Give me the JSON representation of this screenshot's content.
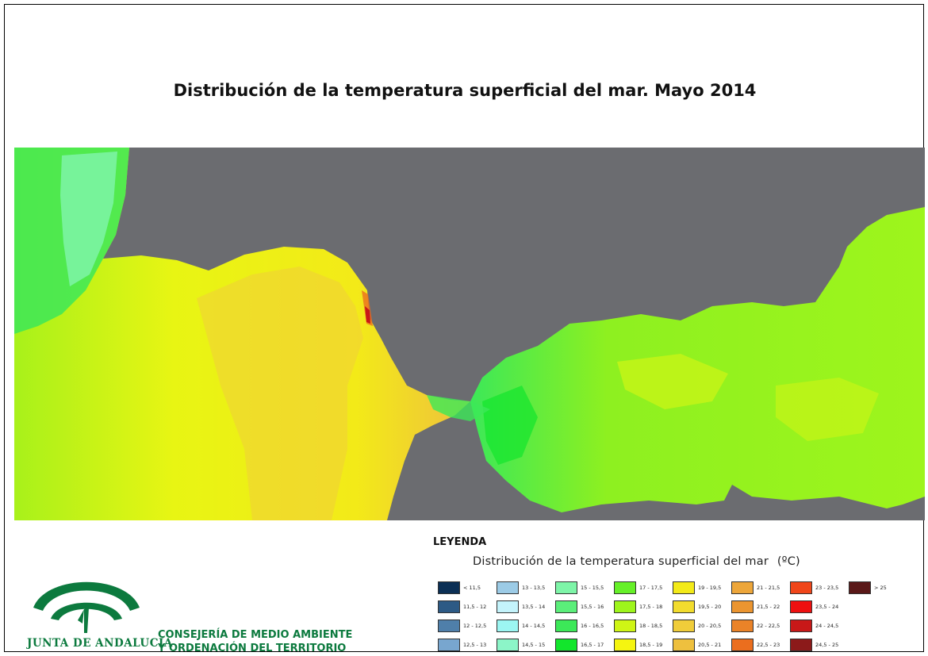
{
  "title": "Distribución de la temperatura superficial del mar. Mayo 2014",
  "legend": {
    "heading": "LEYENDA",
    "subtitle": "Distribución de la temperatura superficial del mar",
    "unit": "(ºC)",
    "items": [
      {
        "label": "< 11,5",
        "color": "#0b2f55"
      },
      {
        "label": "11,5 - 12",
        "color": "#2d5a85"
      },
      {
        "label": "12 - 12,5",
        "color": "#4f7faa"
      },
      {
        "label": "12,5 - 13",
        "color": "#78a6cf"
      },
      {
        "label": "13 - 13,5",
        "color": "#9ccbe6"
      },
      {
        "label": "13,5 - 14",
        "color": "#c4f3fb"
      },
      {
        "label": "14 - 14,5",
        "color": "#9cf6f2"
      },
      {
        "label": "14,5 - 15",
        "color": "#8cf5c8"
      },
      {
        "label": "15 - 15,5",
        "color": "#7ef5a8"
      },
      {
        "label": "15,5 - 16",
        "color": "#5bee7a"
      },
      {
        "label": "16 - 16,5",
        "color": "#3ce858"
      },
      {
        "label": "16,5 - 17",
        "color": "#12e62c"
      },
      {
        "label": "17 - 17,5",
        "color": "#66f028"
      },
      {
        "label": "17,5 - 18",
        "color": "#9ef51c"
      },
      {
        "label": "18 - 18,5",
        "color": "#cff515"
      },
      {
        "label": "18,5 - 19",
        "color": "#f5f510"
      },
      {
        "label": "19 - 19,5",
        "color": "#f3ea18"
      },
      {
        "label": "19,5 - 20",
        "color": "#f2dc2e"
      },
      {
        "label": "20 - 20,5",
        "color": "#f0cd3a"
      },
      {
        "label": "20,5 - 21",
        "color": "#eec03e"
      },
      {
        "label": "21 - 21,5",
        "color": "#eda63a"
      },
      {
        "label": "21,5 - 22",
        "color": "#eb9530"
      },
      {
        "label": "22 - 22,5",
        "color": "#ea8328"
      },
      {
        "label": "22,5 - 23",
        "color": "#eb6e1e"
      },
      {
        "label": "23 - 23,5",
        "color": "#f0461a"
      },
      {
        "label": "23,5 - 24",
        "color": "#ee1010"
      },
      {
        "label": "24 - 24,5",
        "color": "#c81818"
      },
      {
        "label": "24,5 - 25",
        "color": "#8c1a1a"
      },
      {
        "label": "> 25",
        "color": "#5a1818"
      }
    ]
  },
  "logo_text": "JUNTA DE ANDALUCIA",
  "department": {
    "line1": "CONSEJERÍA DE MEDIO AMBIENTE",
    "line2": "Y ORDENACIÓN DEL TERRITORIO"
  },
  "colors": {
    "land": "#6b6c70",
    "brand_green": "#0c7a3e"
  }
}
